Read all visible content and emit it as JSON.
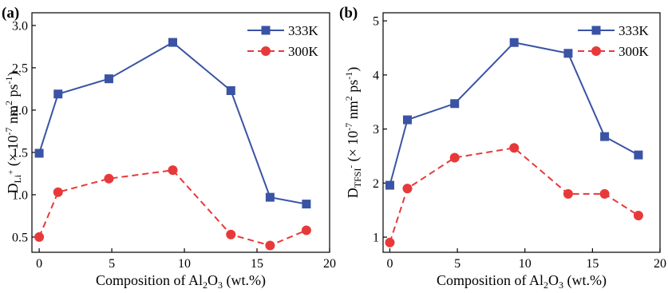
{
  "figure": {
    "background": "#ffffff"
  },
  "chart_data": [
    {
      "type": "line",
      "panel_label": "(a)",
      "xlabel": {
        "pre": "Composition of Al",
        "sub1": "2",
        "mid": "O",
        "sub2": "3",
        "post": " (wt.%)"
      },
      "ylabel": {
        "pre": "D",
        "sub": "Li",
        "subsup": "+",
        "mid": " (× 10",
        "sup1": "-7",
        "mid2": " nm",
        "sup2": "2",
        "mid3": " ps",
        "sup3": "-1",
        "post": ")"
      },
      "xlim": [
        -0.5,
        20
      ],
      "ylim": [
        0.32,
        3.15
      ],
      "x_ticks": [
        0,
        5,
        10,
        15,
        20
      ],
      "x_tick_labels": [
        "0",
        "5",
        "10",
        "15",
        "20"
      ],
      "y_ticks": [
        0.5,
        1.0,
        1.5,
        2.0,
        2.5,
        3.0
      ],
      "y_tick_labels": [
        "0.5",
        "1.0",
        "1.5",
        "2.0",
        "2.5",
        "3.0"
      ],
      "legend_position": "top-right",
      "series": [
        {
          "name": "333K",
          "color": "#3a53a4",
          "marker": "square",
          "line_style": "solid",
          "x": [
            0,
            1.3,
            4.8,
            9.2,
            13.2,
            15.9,
            18.4
          ],
          "y": [
            1.49,
            2.19,
            2.37,
            2.8,
            2.23,
            0.97,
            0.89
          ]
        },
        {
          "name": "300K",
          "color": "#e8393a",
          "marker": "circle",
          "line_style": "dashed",
          "x": [
            0,
            1.3,
            4.8,
            9.2,
            13.2,
            15.9,
            18.4
          ],
          "y": [
            0.5,
            1.03,
            1.19,
            1.29,
            0.53,
            0.4,
            0.58
          ]
        }
      ]
    },
    {
      "type": "line",
      "panel_label": "(b)",
      "xlabel": {
        "pre": "Composition of Al",
        "sub1": "2",
        "mid": "O",
        "sub2": "3",
        "post": " (wt.%)"
      },
      "ylabel": {
        "pre": "D",
        "sub": "TFSI",
        "subsup": "-",
        "mid": " (× 10",
        "sup1": "-7",
        "mid2": " nm",
        "sup2": "2",
        "mid3": " ps",
        "sup3": "-1",
        "post": ")"
      },
      "xlim": [
        -0.5,
        20
      ],
      "ylim": [
        0.72,
        5.15
      ],
      "x_ticks": [
        0,
        5,
        10,
        15,
        20
      ],
      "x_tick_labels": [
        "0",
        "5",
        "10",
        "15",
        "20"
      ],
      "y_ticks": [
        1,
        2,
        3,
        4,
        5
      ],
      "y_tick_labels": [
        "1",
        "2",
        "3",
        "4",
        "5"
      ],
      "legend_position": "top-right",
      "series": [
        {
          "name": "333K",
          "color": "#3a53a4",
          "marker": "square",
          "line_style": "solid",
          "x": [
            0,
            1.3,
            4.8,
            9.2,
            13.2,
            15.9,
            18.4
          ],
          "y": [
            1.96,
            3.17,
            3.47,
            4.6,
            4.4,
            2.86,
            2.52
          ]
        },
        {
          "name": "300K",
          "color": "#e8393a",
          "marker": "circle",
          "line_style": "dashed",
          "x": [
            0,
            1.3,
            4.8,
            9.2,
            13.2,
            15.9,
            18.4
          ],
          "y": [
            0.9,
            1.9,
            2.47,
            2.65,
            1.8,
            1.8,
            1.4
          ]
        }
      ]
    }
  ]
}
